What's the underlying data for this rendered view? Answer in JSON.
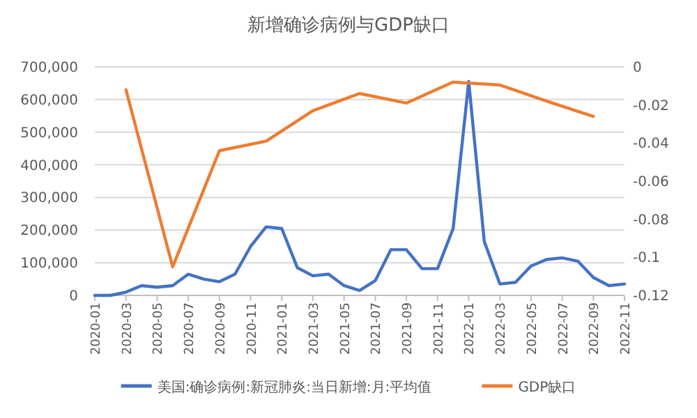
{
  "chart_data": {
    "type": "line",
    "title": "新增确诊病例与GDP缺口",
    "legend": "bottom",
    "grid": "y",
    "marker": "none",
    "line_style": "solid",
    "xlim": [
      "2020-01",
      "2022-11"
    ],
    "xticks": [
      "2020-01",
      "2020-03",
      "2020-05",
      "2020-07",
      "2020-09",
      "2020-11",
      "2021-01",
      "2021-03",
      "2021-05",
      "2021-07",
      "2021-09",
      "2021-11",
      "2022-01",
      "2022-03",
      "2022-05",
      "2022-07",
      "2022-09",
      "2022-11"
    ],
    "ylim": [
      0,
      700000
    ],
    "yticks": [
      {
        "value": 0,
        "label": "0"
      },
      {
        "value": 100000,
        "label": "100,000"
      },
      {
        "value": 200000,
        "label": "200,000"
      },
      {
        "value": 300000,
        "label": "300,000"
      },
      {
        "value": 400000,
        "label": "400,000"
      },
      {
        "value": 500000,
        "label": "500,000"
      },
      {
        "value": 600000,
        "label": "600,000"
      },
      {
        "value": 700000,
        "label": "700,000"
      }
    ],
    "y2lim": [
      -0.12,
      0
    ],
    "y2ticks": [
      0,
      -0.02,
      -0.04,
      -0.06,
      -0.08,
      -0.1,
      -0.12
    ],
    "series": [
      {
        "name": "美国:确诊病例:新冠肺炎:当日新增:月:平均值",
        "color": "#4472c4",
        "x": [
          "2020-01",
          "2020-02",
          "2020-03",
          "2020-04",
          "2020-05",
          "2020-06",
          "2020-07",
          "2020-08",
          "2020-09",
          "2020-10",
          "2020-11",
          "2020-12",
          "2021-01",
          "2021-02",
          "2021-03",
          "2021-04",
          "2021-05",
          "2021-06",
          "2021-07",
          "2021-08",
          "2021-09",
          "2021-10",
          "2021-11",
          "2021-12",
          "2022-01",
          "2022-02",
          "2022-03",
          "2022-04",
          "2022-05",
          "2022-06",
          "2022-07",
          "2022-08",
          "2022-09",
          "2022-10",
          "2022-11"
        ],
        "values": [
          0,
          0,
          10000,
          30000,
          25000,
          30000,
          65000,
          50000,
          42000,
          65000,
          150000,
          210000,
          205000,
          85000,
          60000,
          65000,
          30000,
          15000,
          45000,
          140000,
          140000,
          82000,
          82000,
          205000,
          655000,
          165000,
          35000,
          40000,
          90000,
          110000,
          115000,
          105000,
          55000,
          30000,
          35000
        ]
      },
      {
        "name": "GDP缺口",
        "color": "#ed7d31",
        "axis": "y2",
        "x": [
          "2020-03",
          "2020-06",
          "2020-09",
          "2020-12",
          "2021-03",
          "2021-06",
          "2021-09",
          "2021-12",
          "2022-03",
          "2022-06",
          "2022-09"
        ],
        "values": [
          -0.012,
          -0.105,
          -0.044,
          -0.039,
          -0.023,
          -0.014,
          -0.019,
          -0.008,
          -0.0095,
          -0.018,
          -0.026
        ]
      }
    ]
  }
}
